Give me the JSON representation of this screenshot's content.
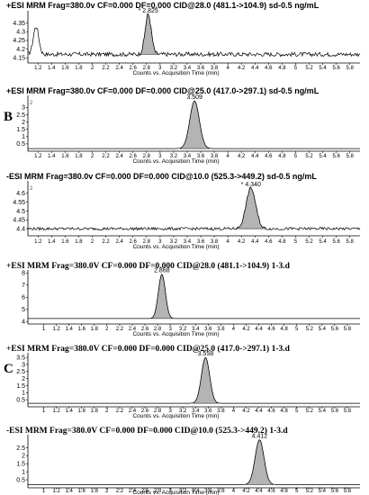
{
  "figure": {
    "panel_letters": [
      "B",
      "C"
    ]
  },
  "chart_data": [
    {
      "type": "line",
      "title": "+ESI MRM Frag=380.0v CF=0.000 DF=0.000 CID@28.0 (481.1->104.9) sd-0.5 ng/mL",
      "xlabel": "Counts vs. Acquisition Time (min)",
      "xlim": [
        1.05,
        5.95
      ],
      "ylim": [
        4.12,
        4.41
      ],
      "xticks": [
        1.2,
        1.4,
        1.6,
        1.8,
        2,
        2.2,
        2.4,
        2.6,
        2.8,
        3,
        3.2,
        3.4,
        3.6,
        3.8,
        4,
        4.2,
        4.4,
        4.6,
        4.8,
        5,
        5.2,
        5.4,
        5.6,
        5.8
      ],
      "yticks": [
        4.15,
        4.2,
        4.25,
        4.3,
        4.35
      ],
      "peak": {
        "rt": 2.825,
        "apex": 4.4,
        "width": 0.045,
        "label": "* 2.825"
      },
      "baseline": 4.17,
      "noise": 0.012,
      "initial_spike": {
        "x": 1.17,
        "y": 4.33
      },
      "corner_label": ""
    },
    {
      "type": "line",
      "title": "+ESI MRM Frag=380.0v CF=0.000 DF=0.000 CID@25.0 (417.0->297.1) sd-0.5 ng/mL",
      "xlabel": "Counts vs. Acquisition Time (min)",
      "xlim": [
        1.05,
        5.95
      ],
      "ylim": [
        0,
        3.7
      ],
      "xticks": [
        1.2,
        1.4,
        1.6,
        1.8,
        2,
        2.2,
        2.4,
        2.6,
        2.8,
        3,
        3.2,
        3.4,
        3.6,
        3.8,
        4,
        4.2,
        4.4,
        4.6,
        4.8,
        5,
        5.2,
        5.4,
        5.6,
        5.8
      ],
      "yticks": [
        0.5,
        1,
        1.5,
        2,
        2.5,
        3
      ],
      "peak": {
        "rt": 3.509,
        "apex": 3.45,
        "width": 0.07,
        "label": "3.509"
      },
      "baseline": 0.18,
      "noise": 0.0,
      "corner_label": "2"
    },
    {
      "type": "line",
      "title": "-ESI MRM Frag=380.0v CF=0.000 DF=0.000 CID@10.0 (525.3->449.2) sd-0.5 ng/mL",
      "xlabel": "Counts vs. Acquisition Time (min)",
      "xlim": [
        1.05,
        5.95
      ],
      "ylim": [
        4.36,
        4.66
      ],
      "xticks": [
        1.2,
        1.4,
        1.6,
        1.8,
        2,
        2.2,
        2.4,
        2.6,
        2.8,
        3,
        3.2,
        3.4,
        3.6,
        3.8,
        4,
        4.2,
        4.4,
        4.6,
        4.8,
        5,
        5.2,
        5.4,
        5.6,
        5.8
      ],
      "yticks": [
        4.4,
        4.45,
        4.5,
        4.55,
        4.6
      ],
      "peak": {
        "rt": 4.34,
        "apex": 4.63,
        "width": 0.07,
        "label": "* 4.340"
      },
      "baseline": 4.4,
      "noise": 0.008,
      "corner_label": "2"
    },
    {
      "type": "line",
      "title": "+ESI MRM Frag=380.0V CF=0.000 DF=0.000 CID@28.0 (481.1->104.9) 1-3.d",
      "xlabel": "Counts vs. Acquisition Time (min)",
      "xlim": [
        0.75,
        6.0
      ],
      "ylim": [
        3.8,
        8.1
      ],
      "xticks": [
        1,
        1.2,
        1.4,
        1.6,
        1.8,
        2,
        2.2,
        2.4,
        2.6,
        2.8,
        3,
        3.2,
        3.4,
        3.6,
        3.8,
        4,
        4.2,
        4.4,
        4.6,
        4.8,
        5,
        5.2,
        5.4,
        5.6,
        5.8
      ],
      "yticks": [
        4,
        5,
        6,
        7,
        8
      ],
      "peak": {
        "rt": 2.868,
        "apex": 7.9,
        "width": 0.055,
        "label": "2.868"
      },
      "baseline": 4.25,
      "noise": 0.0,
      "corner_label": ""
    },
    {
      "type": "line",
      "title": "+ESI MRM Frag=380.0V CF=0.000 DF=0.000 CID@25.0 (417.0->297.1) 1-3.d",
      "xlabel": "Counts vs. Acquisition Time (min)",
      "xlim": [
        0.75,
        6.0
      ],
      "ylim": [
        0,
        3.7
      ],
      "xticks": [
        1,
        1.2,
        1.4,
        1.6,
        1.8,
        2,
        2.2,
        2.4,
        2.6,
        2.8,
        3,
        3.2,
        3.4,
        3.6,
        3.8,
        4,
        4.2,
        4.4,
        4.6,
        4.8,
        5,
        5.2,
        5.4,
        5.6,
        5.8
      ],
      "yticks": [
        0.5,
        1,
        1.5,
        2,
        2.5,
        3,
        3.5
      ],
      "peak": {
        "rt": 3.558,
        "apex": 3.5,
        "width": 0.065,
        "label": "3.558"
      },
      "baseline": 0.25,
      "noise": 0.0,
      "corner_label": ""
    },
    {
      "type": "line",
      "title": "-ESI MRM Frag=380.0V CF=0.000 DF=0.000 CID@10.0 (525.3->449.2) 1-3.d",
      "xlabel": "Counts vs. Acquisition Time (min)",
      "xlim": [
        0.75,
        6.0
      ],
      "ylim": [
        0,
        3.2
      ],
      "xticks": [
        1,
        1.2,
        1.4,
        1.6,
        1.8,
        2,
        2.2,
        2.4,
        2.6,
        2.8,
        3,
        3.2,
        3.4,
        3.6,
        3.8,
        4,
        4.2,
        4.4,
        4.6,
        4.8,
        5,
        5.2,
        5.4,
        5.6,
        5.8
      ],
      "yticks": [
        0.5,
        1,
        1.5,
        2,
        2.5
      ],
      "peak": {
        "rt": 4.412,
        "apex": 3.0,
        "width": 0.07,
        "label": "4.412"
      },
      "baseline": 0.2,
      "noise": 0.0,
      "corner_label": ""
    }
  ]
}
